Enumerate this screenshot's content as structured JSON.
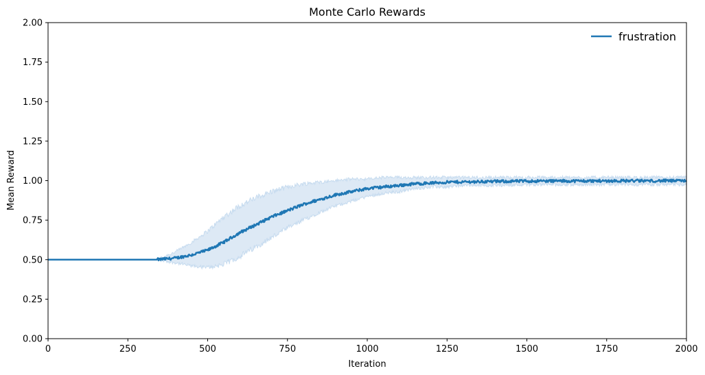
{
  "chart_data": {
    "type": "line",
    "title": "Monte Carlo Rewards",
    "xlabel": "Iteration",
    "ylabel": "Mean Reward",
    "xlim": [
      0,
      2000
    ],
    "ylim": [
      0,
      2.0
    ],
    "x_ticks": [
      0,
      250,
      500,
      750,
      1000,
      1250,
      1500,
      1750,
      2000
    ],
    "y_ticks": [
      0.0,
      0.25,
      0.5,
      0.75,
      1.0,
      1.25,
      1.5,
      1.75,
      2.0
    ],
    "x_tick_labels": [
      "0",
      "250",
      "500",
      "750",
      "1000",
      "1250",
      "1500",
      "1750",
      "2000"
    ],
    "y_tick_labels": [
      "0.00",
      "0.25",
      "0.50",
      "0.75",
      "1.00",
      "1.25",
      "1.50",
      "1.75",
      "2.00"
    ],
    "grid": false,
    "legend_position": "top-right",
    "series": [
      {
        "name": "frustration",
        "color": "#1f77b4",
        "band_color": "#c6dbef",
        "x": [
          0,
          100,
          200,
          300,
          340,
          400,
          450,
          500,
          550,
          600,
          650,
          700,
          750,
          800,
          850,
          900,
          950,
          1000,
          1050,
          1100,
          1150,
          1200,
          1250,
          1300,
          1400,
          1500,
          1600,
          1700,
          1800,
          1900,
          2000
        ],
        "values": [
          0.5,
          0.5,
          0.5,
          0.5,
          0.5,
          0.51,
          0.53,
          0.56,
          0.61,
          0.67,
          0.72,
          0.77,
          0.81,
          0.85,
          0.88,
          0.91,
          0.93,
          0.95,
          0.96,
          0.97,
          0.98,
          0.985,
          0.99,
          0.992,
          0.995,
          0.997,
          0.998,
          0.998,
          0.999,
          0.999,
          0.999
        ],
        "lower": [
          0.5,
          0.5,
          0.5,
          0.5,
          0.5,
          0.48,
          0.46,
          0.45,
          0.47,
          0.52,
          0.58,
          0.64,
          0.7,
          0.75,
          0.8,
          0.84,
          0.87,
          0.9,
          0.92,
          0.93,
          0.95,
          0.96,
          0.96,
          0.97,
          0.97,
          0.975,
          0.975,
          0.975,
          0.975,
          0.975,
          0.975
        ],
        "upper": [
          0.5,
          0.5,
          0.5,
          0.5,
          0.5,
          0.55,
          0.61,
          0.68,
          0.77,
          0.84,
          0.89,
          0.93,
          0.96,
          0.98,
          0.99,
          1.0,
          1.01,
          1.01,
          1.02,
          1.02,
          1.02,
          1.02,
          1.02,
          1.02,
          1.02,
          1.02,
          1.02,
          1.02,
          1.02,
          1.02,
          1.02
        ]
      }
    ]
  }
}
